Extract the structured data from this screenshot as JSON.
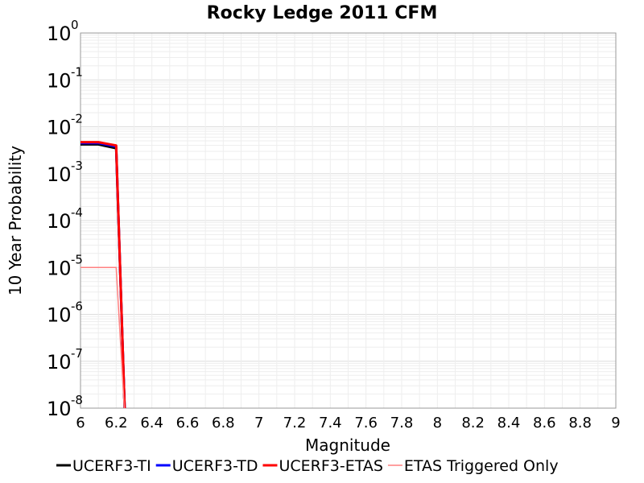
{
  "chart_data": {
    "type": "line",
    "title": "Rocky Ledge 2011 CFM",
    "xlabel": "Magnitude",
    "ylabel": "10 Year Probability",
    "xlim": [
      6,
      9
    ],
    "ylim": [
      1e-08,
      1
    ],
    "yscale": "log",
    "grid": true,
    "legend_position": "bottom",
    "x_ticks": [
      "6",
      "6.2",
      "6.4",
      "6.6",
      "6.8",
      "7",
      "7.2",
      "7.4",
      "7.6",
      "7.8",
      "8",
      "8.2",
      "8.4",
      "8.6",
      "8.8",
      "9"
    ],
    "y_ticks": [
      {
        "base": "10",
        "exp": "0"
      },
      {
        "base": "10",
        "exp": "-1"
      },
      {
        "base": "10",
        "exp": "-2"
      },
      {
        "base": "10",
        "exp": "-3"
      },
      {
        "base": "10",
        "exp": "-4"
      },
      {
        "base": "10",
        "exp": "-5"
      },
      {
        "base": "10",
        "exp": "-6"
      },
      {
        "base": "10",
        "exp": "-7"
      },
      {
        "base": "10",
        "exp": "-8"
      }
    ],
    "series": [
      {
        "name": "UCERF3-TI",
        "color": "#000000",
        "width": 3,
        "x": [
          6.0,
          6.1,
          6.2,
          6.25
        ],
        "y": [
          0.0042,
          0.0042,
          0.0035,
          5e-09
        ]
      },
      {
        "name": "UCERF3-TD",
        "color": "#0000ff",
        "width": 3,
        "x": [
          6.0,
          6.1,
          6.2,
          6.25
        ],
        "y": [
          0.0045,
          0.0045,
          0.0038,
          5e-09
        ]
      },
      {
        "name": "UCERF3-ETAS",
        "color": "#ff0000",
        "width": 3,
        "x": [
          6.0,
          6.1,
          6.2,
          6.25
        ],
        "y": [
          0.0047,
          0.0047,
          0.004,
          5e-09
        ]
      },
      {
        "name": "ETAS Triggered Only",
        "color": "#ff8080",
        "width": 1.5,
        "x": [
          6.0,
          6.2,
          6.25
        ],
        "y": [
          1e-05,
          1e-05,
          5e-09
        ]
      }
    ]
  }
}
